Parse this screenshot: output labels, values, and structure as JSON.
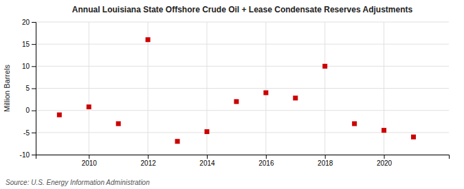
{
  "chart_data": {
    "type": "scatter",
    "title": "Annual Louisiana State Offshore Crude Oil + Lease Condensate Reserves Adjustments",
    "ylabel": "Million Barrels",
    "annotations": [
      "Source: U.S. Energy Information Administration"
    ],
    "x": [
      2009,
      2010,
      2011,
      2012,
      2013,
      2014,
      2015,
      2016,
      2017,
      2018,
      2019,
      2020,
      2021
    ],
    "values": [
      -1.0,
      0.8,
      -3.0,
      16.0,
      -7.0,
      -4.8,
      2.0,
      4.0,
      2.8,
      10.0,
      -3.0,
      -4.5,
      -6.0
    ],
    "color": "#cc0000",
    "marker": "square",
    "xlim": [
      2008.2,
      2022.2
    ],
    "xticks": [
      2010,
      2012,
      2014,
      2016,
      2018,
      2020
    ],
    "ylim": [
      -10,
      20
    ],
    "yticks": [
      -10,
      -5,
      0,
      5,
      10,
      15,
      20
    ],
    "grid": true
  }
}
